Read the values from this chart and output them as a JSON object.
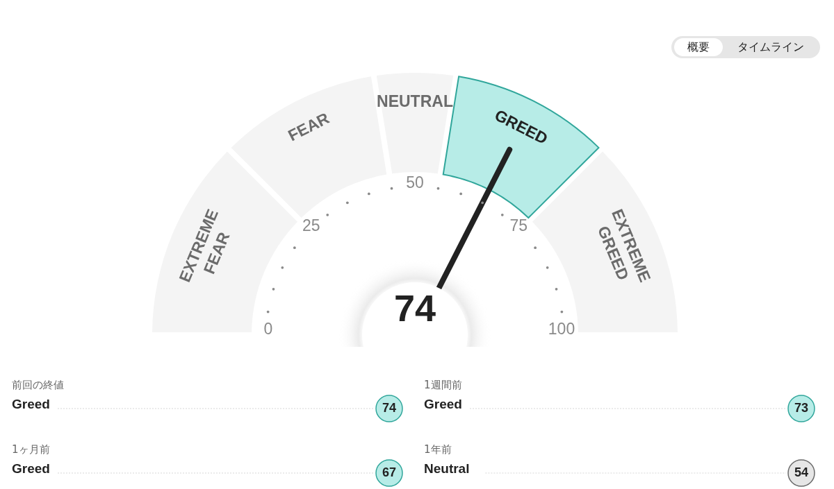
{
  "chart_data": [
    {
      "type": "other",
      "annotations": [
        "概要",
        "タイムライン"
      ]
    },
    {
      "type": "donut",
      "categories": [
        "EXTREME FEAR",
        "FEAR",
        "NEUTRAL",
        "GREED",
        "EXTREME GREED"
      ],
      "values": [
        25,
        20,
        10,
        20,
        25
      ],
      "colors": [
        "#f4f4f4",
        "#f4f4f4",
        "#f4f4f4",
        "#b7ece7",
        "#f4f4f4"
      ],
      "needle": "GREED",
      "annotations": [
        "74",
        "0",
        "25",
        "50",
        "75",
        "100"
      ]
    },
    {
      "type": "other",
      "categories": [
        "Greed",
        "Greed"
      ],
      "values": [
        74,
        67
      ],
      "colors": [
        "#b7ece7",
        "#b7ece7"
      ],
      "annotations": [
        "前回の終値",
        "1ヶ月前"
      ],
      "data_labels": true
    },
    {
      "type": "other",
      "categories": [
        "Greed",
        "Neutral"
      ],
      "values": [
        73,
        54
      ],
      "colors": [
        "#b7ece7",
        "#e6e6e6"
      ],
      "annotations": [
        "1週間前",
        "1年前"
      ],
      "data_labels": true
    }
  ]
}
